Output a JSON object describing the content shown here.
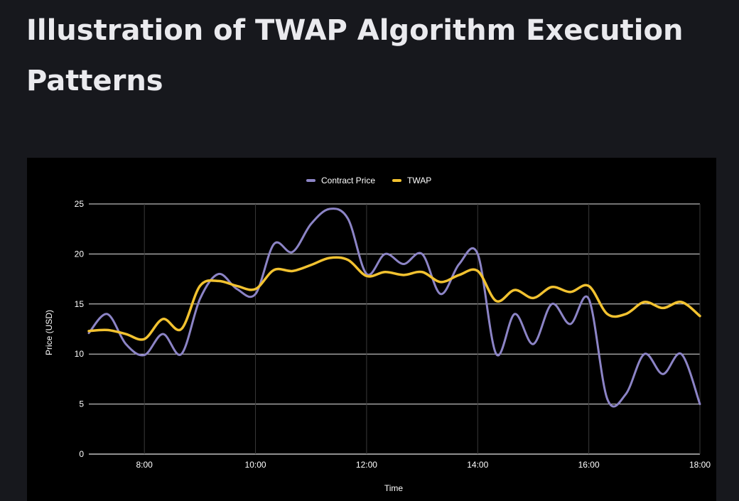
{
  "page": {
    "title": "Illustration of TWAP Algorithm Execution Patterns"
  },
  "colors": {
    "page_background": "#17181d",
    "chart_background": "#000000",
    "contract_price": "#8c84c6",
    "twap": "#f2c230",
    "grid": "#3a3a3a",
    "text": "#ffffff"
  },
  "chart_data": {
    "type": "line",
    "xlabel": "Time",
    "ylabel": "Price (USD)",
    "xlim": [
      "07:00",
      "18:00"
    ],
    "ylim": [
      0,
      25
    ],
    "x_ticks": [
      "8:00",
      "10:00",
      "12:00",
      "14:00",
      "16:00",
      "18:00"
    ],
    "y_ticks": [
      0,
      5,
      10,
      15,
      20,
      25
    ],
    "grid": true,
    "legend_position": "top",
    "x": [
      "07:00",
      "07:20",
      "07:40",
      "08:00",
      "08:20",
      "08:40",
      "09:00",
      "09:20",
      "09:40",
      "10:00",
      "10:20",
      "10:40",
      "11:00",
      "11:20",
      "11:40",
      "12:00",
      "12:20",
      "12:40",
      "13:00",
      "13:20",
      "13:40",
      "14:00",
      "14:20",
      "14:40",
      "15:00",
      "15:20",
      "15:40",
      "16:00",
      "16:20",
      "16:40",
      "17:00",
      "17:20",
      "17:40",
      "18:00"
    ],
    "series": [
      {
        "name": "Contract Price",
        "color": "#8c84c6",
        "values": [
          12.1,
          14.0,
          11.0,
          9.9,
          12.0,
          10.0,
          15.5,
          18.0,
          16.5,
          16.0,
          21.0,
          20.2,
          23.0,
          24.5,
          23.5,
          18.0,
          20.0,
          19.0,
          20.0,
          16.0,
          19.0,
          20.0,
          10.0,
          14.0,
          11.0,
          15.0,
          13.0,
          15.5,
          5.5,
          6.0,
          10.0,
          8.0,
          10.0,
          5.0
        ]
      },
      {
        "name": "TWAP",
        "color": "#f2c230",
        "values": [
          12.3,
          12.4,
          12.0,
          11.5,
          13.5,
          12.5,
          16.8,
          17.3,
          16.8,
          16.5,
          18.4,
          18.3,
          18.9,
          19.6,
          19.4,
          17.8,
          18.2,
          17.9,
          18.2,
          17.2,
          17.9,
          18.3,
          15.3,
          16.4,
          15.6,
          16.7,
          16.2,
          16.8,
          14.0,
          14.0,
          15.2,
          14.6,
          15.2,
          13.8
        ]
      }
    ]
  }
}
